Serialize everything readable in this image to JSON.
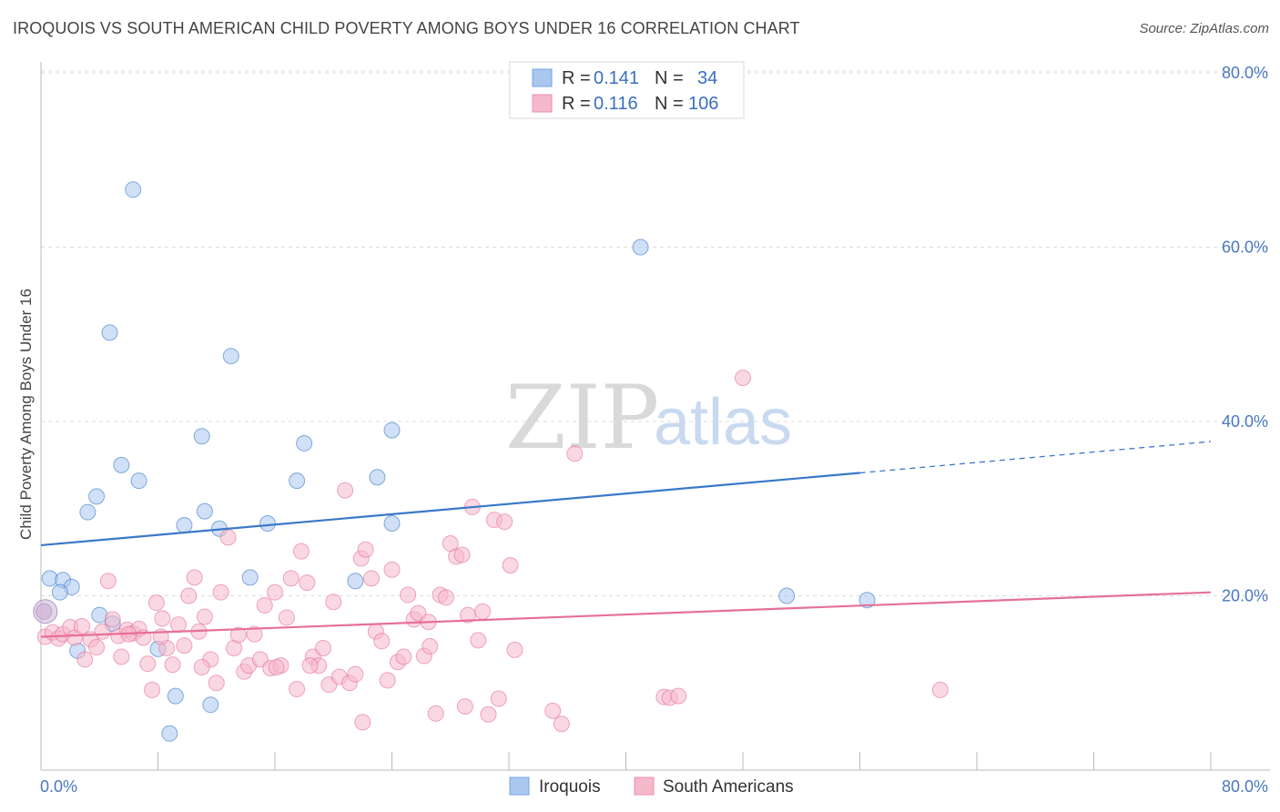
{
  "title": "IROQUOIS VS SOUTH AMERICAN CHILD POVERTY AMONG BOYS UNDER 16 CORRELATION CHART",
  "source": "Source: ZipAtlas.com",
  "watermark": {
    "zip": "ZIP",
    "atlas": "atlas"
  },
  "stats": [
    {
      "r_label": "R =",
      "r_value": "0.141",
      "n_label": "N =",
      "n_value": "34",
      "color": "#a9c7ef"
    },
    {
      "r_label": "R =",
      "r_value": "0.116",
      "n_label": "N =",
      "n_value": "106",
      "color": "#f6b8cb"
    }
  ],
  "legend": [
    {
      "label": "Iroquois",
      "color": "#a9c7ef"
    },
    {
      "label": "South Americans",
      "color": "#f6b8cb"
    }
  ],
  "chart_data": {
    "type": "scatter",
    "title": "IROQUOIS VS SOUTH AMERICAN CHILD POVERTY AMONG BOYS UNDER 16 CORRELATION CHART",
    "xlabel": "",
    "ylabel": "Child Poverty Among Boys Under 16",
    "xlim": [
      0,
      80
    ],
    "ylim": [
      0,
      80
    ],
    "x_tick_labels": [
      "0.0%",
      "80.0%"
    ],
    "y_tick_labels": [
      "20.0%",
      "40.0%",
      "60.0%",
      "80.0%"
    ],
    "y_ticks": [
      20,
      40,
      60,
      80
    ],
    "grid": true,
    "legend_position": "bottom",
    "series": [
      {
        "name": "Iroquois",
        "color": "#3a78c9",
        "fill": "#a9c7ef",
        "trend": {
          "x0": 0,
          "y0": 25.8,
          "x1": 56,
          "y1": 34.1,
          "dashed_to": 80,
          "dashed_y": 37.7
        },
        "points": [
          [
            6.3,
            66.6
          ],
          [
            4.7,
            50.2
          ],
          [
            13.0,
            47.5
          ],
          [
            41.0,
            60.0
          ],
          [
            11.0,
            38.3
          ],
          [
            18.0,
            37.5
          ],
          [
            24.0,
            39.0
          ],
          [
            5.5,
            35.0
          ],
          [
            6.7,
            33.2
          ],
          [
            17.5,
            33.2
          ],
          [
            23.0,
            33.6
          ],
          [
            3.8,
            31.4
          ],
          [
            3.2,
            29.6
          ],
          [
            11.2,
            29.7
          ],
          [
            9.8,
            28.1
          ],
          [
            12.2,
            27.7
          ],
          [
            15.5,
            28.3
          ],
          [
            24.0,
            28.3
          ],
          [
            0.6,
            22.0
          ],
          [
            1.5,
            21.8
          ],
          [
            2.1,
            21.0
          ],
          [
            1.3,
            20.4
          ],
          [
            14.3,
            22.1
          ],
          [
            21.5,
            21.7
          ],
          [
            51.0,
            20.0
          ],
          [
            56.5,
            19.5
          ],
          [
            0.2,
            18.2
          ],
          [
            4.0,
            17.8
          ],
          [
            4.9,
            16.8
          ],
          [
            2.5,
            13.7
          ],
          [
            8.0,
            13.9
          ],
          [
            9.2,
            8.5
          ],
          [
            11.6,
            7.5
          ],
          [
            8.8,
            4.2
          ]
        ]
      },
      {
        "name": "South Americans",
        "color": "#e5709a",
        "fill": "#f6b8cb",
        "trend": {
          "x0": 0,
          "y0": 15.3,
          "x1": 80,
          "y1": 20.4
        },
        "points": [
          [
            0.2,
            18.2
          ],
          [
            0.3,
            15.3
          ],
          [
            0.8,
            15.8
          ],
          [
            1.2,
            15.1
          ],
          [
            1.5,
            15.6
          ],
          [
            2.0,
            16.4
          ],
          [
            2.3,
            15.2
          ],
          [
            2.8,
            16.5
          ],
          [
            3.0,
            12.7
          ],
          [
            3.4,
            15.0
          ],
          [
            3.8,
            14.1
          ],
          [
            4.2,
            15.9
          ],
          [
            4.6,
            21.7
          ],
          [
            4.9,
            17.3
          ],
          [
            5.3,
            15.4
          ],
          [
            5.5,
            13.0
          ],
          [
            5.9,
            16.1
          ],
          [
            6.3,
            15.7
          ],
          [
            6.7,
            16.2
          ],
          [
            7.0,
            15.2
          ],
          [
            7.3,
            12.2
          ],
          [
            7.6,
            9.2
          ],
          [
            7.9,
            19.2
          ],
          [
            8.3,
            17.4
          ],
          [
            8.6,
            14.0
          ],
          [
            9.0,
            12.1
          ],
          [
            9.4,
            16.7
          ],
          [
            9.8,
            14.3
          ],
          [
            10.1,
            20.0
          ],
          [
            10.5,
            22.1
          ],
          [
            10.8,
            15.9
          ],
          [
            11.2,
            17.6
          ],
          [
            11.6,
            12.7
          ],
          [
            12.0,
            10.0
          ],
          [
            12.3,
            20.4
          ],
          [
            12.8,
            26.7
          ],
          [
            13.2,
            14.0
          ],
          [
            13.5,
            15.5
          ],
          [
            13.9,
            11.3
          ],
          [
            14.2,
            12.0
          ],
          [
            14.6,
            15.6
          ],
          [
            15.0,
            12.7
          ],
          [
            15.3,
            18.9
          ],
          [
            15.7,
            11.7
          ],
          [
            16.0,
            20.4
          ],
          [
            16.4,
            12.0
          ],
          [
            16.8,
            17.5
          ],
          [
            17.1,
            22.0
          ],
          [
            17.5,
            9.3
          ],
          [
            17.8,
            25.1
          ],
          [
            18.2,
            21.5
          ],
          [
            18.6,
            13.0
          ],
          [
            19.0,
            12.0
          ],
          [
            19.3,
            14.0
          ],
          [
            19.7,
            9.8
          ],
          [
            20.0,
            19.3
          ],
          [
            20.4,
            10.7
          ],
          [
            20.8,
            32.1
          ],
          [
            21.1,
            10.0
          ],
          [
            21.5,
            11.0
          ],
          [
            21.9,
            24.3
          ],
          [
            22.2,
            25.3
          ],
          [
            22.6,
            22.0
          ],
          [
            22.9,
            15.9
          ],
          [
            23.3,
            14.8
          ],
          [
            23.7,
            10.3
          ],
          [
            24.0,
            23.0
          ],
          [
            24.4,
            12.4
          ],
          [
            24.8,
            13.0
          ],
          [
            25.1,
            20.1
          ],
          [
            25.5,
            17.3
          ],
          [
            25.8,
            18.0
          ],
          [
            26.2,
            13.1
          ],
          [
            26.6,
            14.2
          ],
          [
            27.0,
            6.5
          ],
          [
            27.3,
            20.1
          ],
          [
            27.7,
            19.8
          ],
          [
            28.0,
            26.0
          ],
          [
            28.4,
            24.5
          ],
          [
            28.8,
            24.7
          ],
          [
            29.2,
            17.8
          ],
          [
            29.5,
            30.2
          ],
          [
            29.9,
            14.9
          ],
          [
            30.2,
            18.2
          ],
          [
            30.6,
            6.4
          ],
          [
            31.0,
            28.7
          ],
          [
            31.3,
            8.2
          ],
          [
            31.7,
            28.5
          ],
          [
            32.1,
            23.5
          ],
          [
            32.4,
            13.8
          ],
          [
            35.0,
            6.8
          ],
          [
            35.6,
            5.3
          ],
          [
            36.5,
            36.3
          ],
          [
            42.6,
            8.4
          ],
          [
            43.0,
            8.3
          ],
          [
            43.6,
            8.5
          ],
          [
            48.0,
            45.0
          ],
          [
            61.5,
            9.2
          ],
          [
            16.1,
            11.8
          ],
          [
            18.4,
            12.0
          ],
          [
            22.0,
            5.5
          ],
          [
            26.5,
            17.0
          ],
          [
            29.0,
            7.3
          ],
          [
            11.0,
            11.8
          ],
          [
            8.2,
            15.3
          ],
          [
            6.0,
            15.6
          ]
        ]
      }
    ]
  }
}
